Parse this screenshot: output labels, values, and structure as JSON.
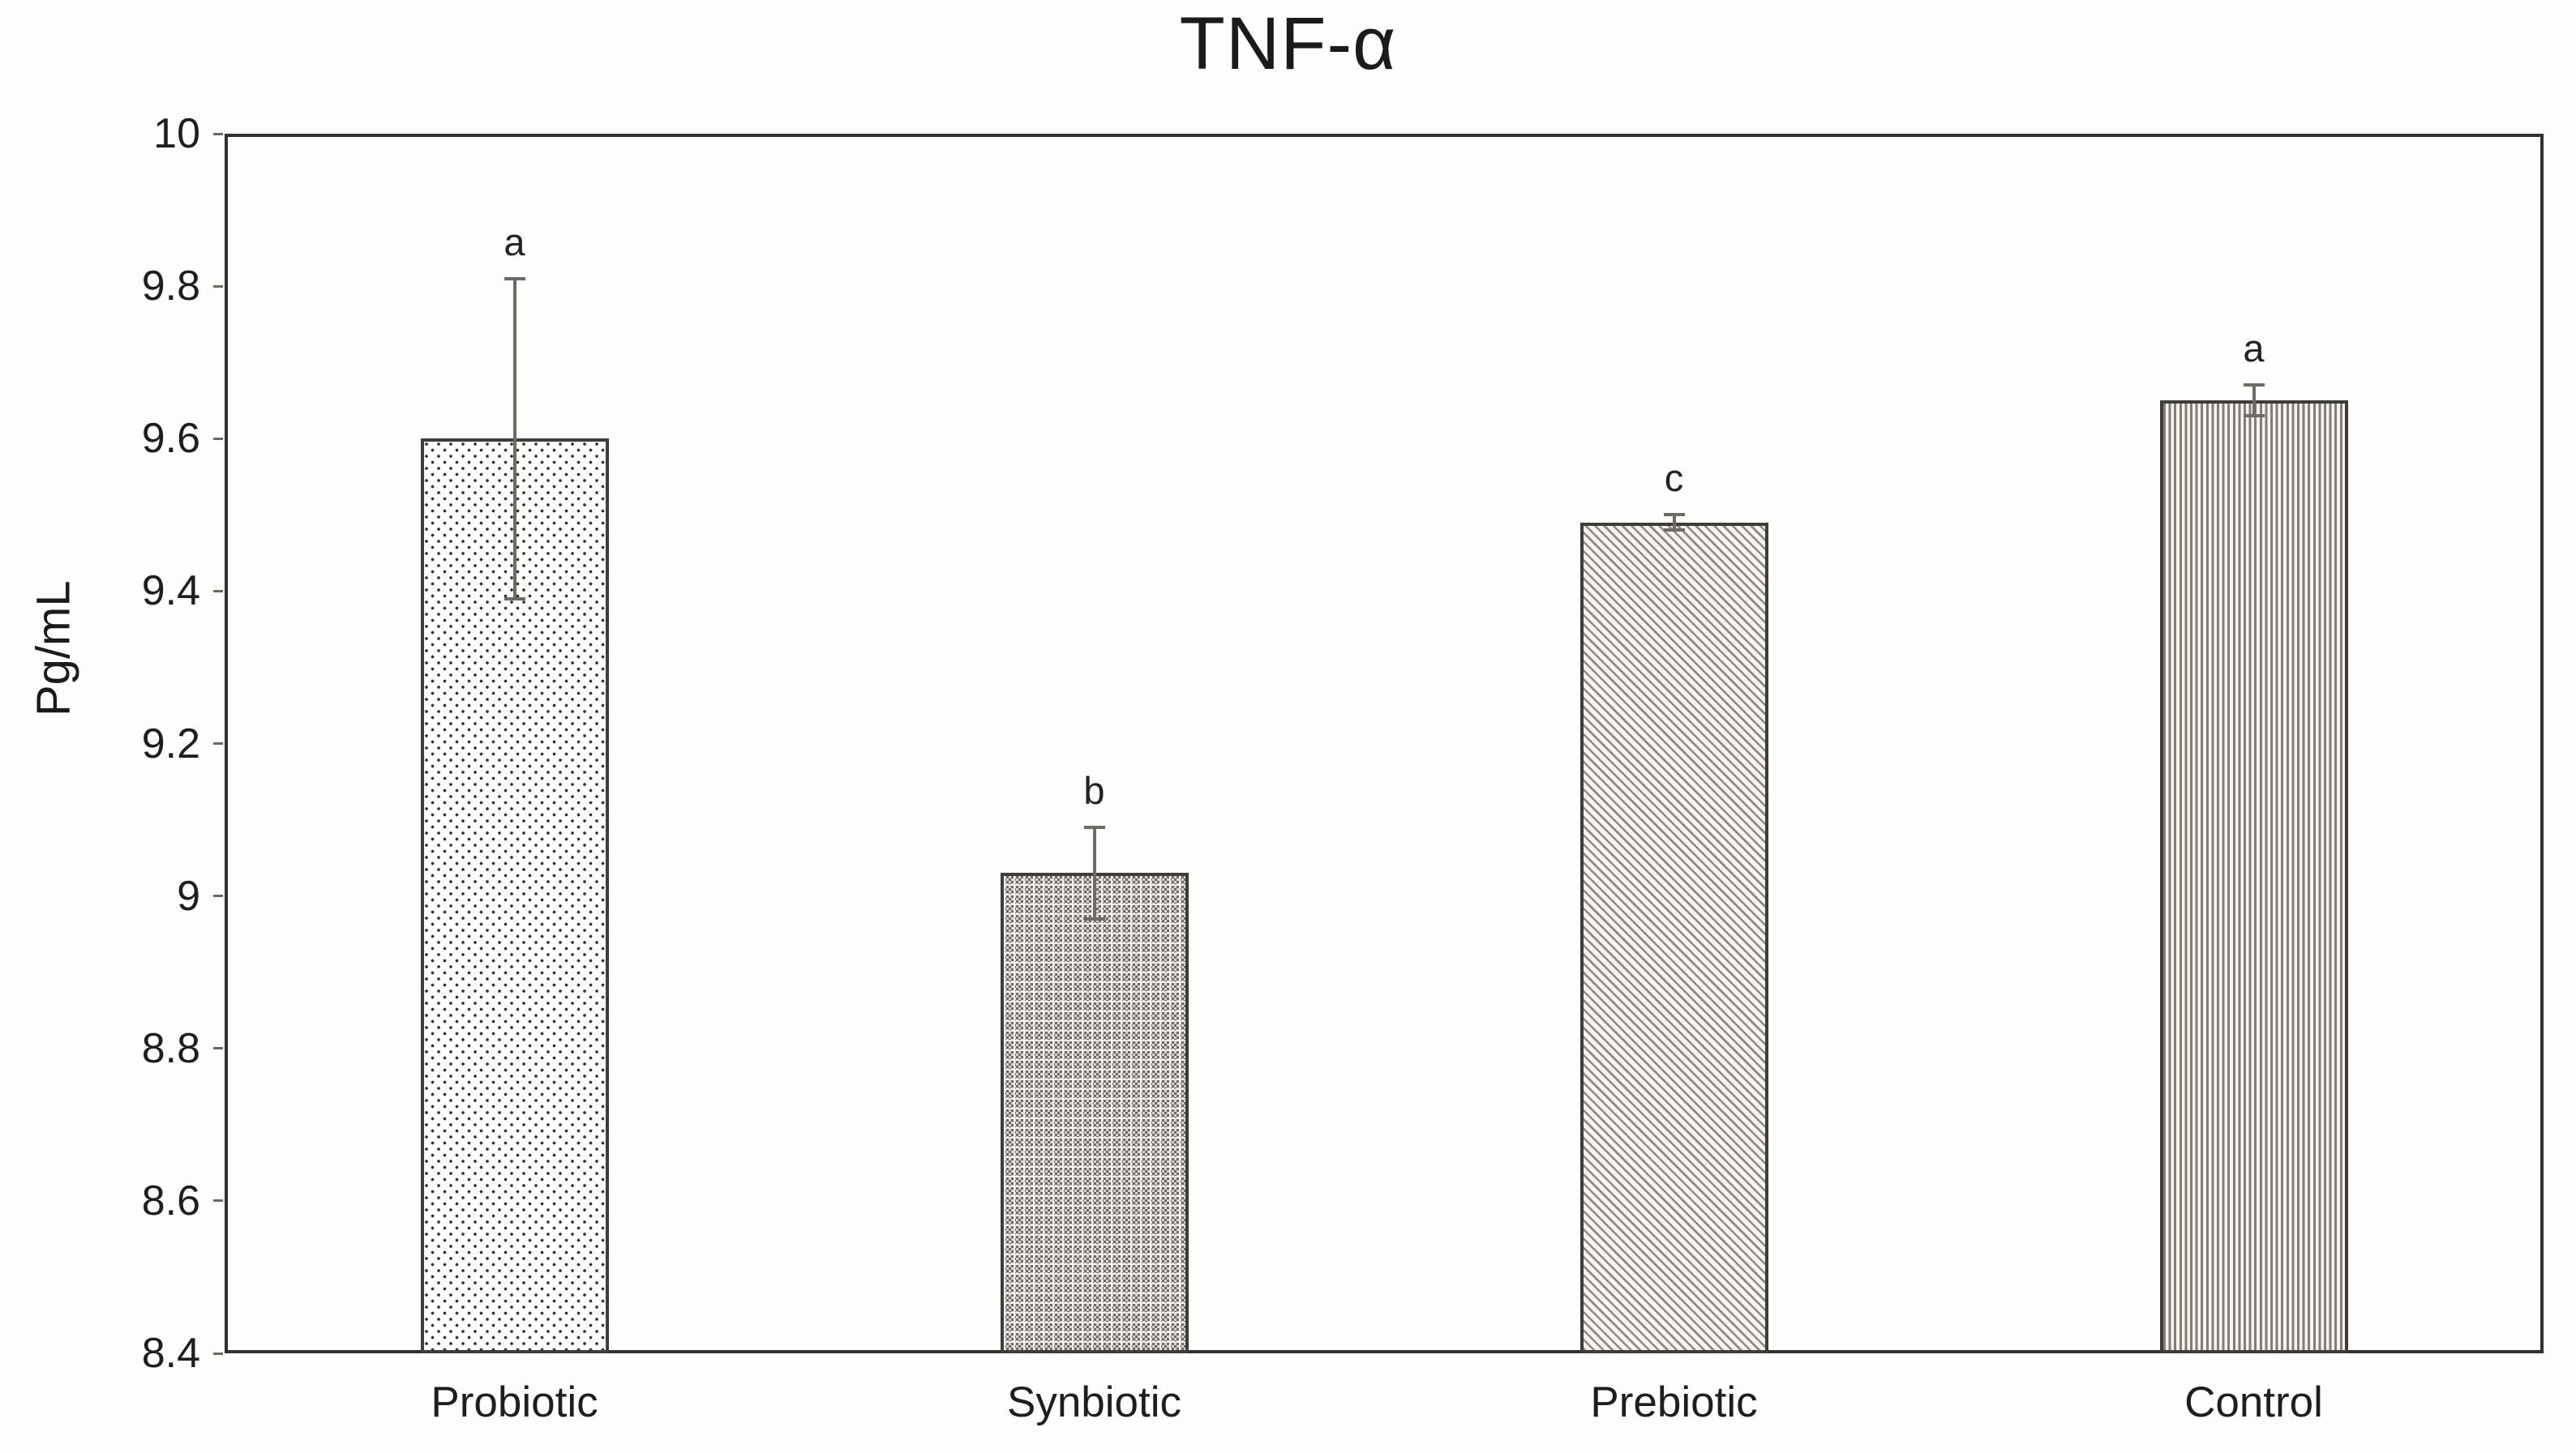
{
  "title": "TNF-α",
  "y_axis_title": "Pg/mL",
  "chart_data": {
    "type": "bar",
    "title": "TNF-α",
    "xlabel": "",
    "ylabel": "Pg/mL",
    "categories": [
      "Probiotic",
      "Synbiotic",
      "Prebiotic",
      "Control"
    ],
    "values": [
      9.6,
      9.03,
      9.49,
      9.65
    ],
    "error_bars": [
      0.21,
      0.06,
      0.01,
      0.02
    ],
    "significance_letters": [
      "a",
      "b",
      "c",
      "a"
    ],
    "ylim": [
      8.4,
      10
    ],
    "ytick_labels": [
      "8.4",
      "8.6",
      "8.8",
      "9",
      "9.2",
      "9.4",
      "9.6",
      "9.8",
      "10"
    ],
    "grid": false,
    "legend_position": "none",
    "bar_fill_patterns": [
      "sparse-dots",
      "dense-weave",
      "diagonal-hatch",
      "vertical-lines"
    ],
    "colors": {
      "background": "#fdfdfc",
      "text": "#1f1e1d",
      "plot_border": "#33312e",
      "bar_outline": "#3f3d3a",
      "error_bar": "#6e6a66"
    }
  }
}
